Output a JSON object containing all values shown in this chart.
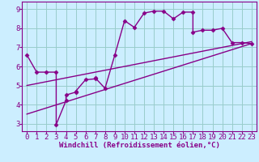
{
  "xlabel": "Windchill (Refroidissement éolien,°C)",
  "bg_color": "#cceeff",
  "line_color": "#880088",
  "grid_color": "#99cccc",
  "xlim": [
    -0.5,
    23.5
  ],
  "ylim": [
    2.6,
    9.4
  ],
  "xticks": [
    0,
    1,
    2,
    3,
    4,
    5,
    6,
    7,
    8,
    9,
    10,
    11,
    12,
    13,
    14,
    15,
    16,
    17,
    18,
    19,
    20,
    21,
    22,
    23
  ],
  "yticks": [
    3,
    4,
    5,
    6,
    7,
    8,
    9
  ],
  "series1_x": [
    0,
    1,
    2,
    3,
    3,
    4,
    4,
    5,
    5,
    6,
    7,
    7,
    8,
    9,
    10,
    11,
    12,
    13,
    14,
    15,
    16,
    17,
    17,
    18,
    19,
    20,
    21,
    22,
    23
  ],
  "series1_y": [
    6.6,
    5.7,
    5.7,
    5.7,
    2.95,
    4.2,
    4.5,
    4.65,
    4.7,
    5.3,
    5.35,
    5.4,
    4.85,
    6.6,
    8.4,
    8.05,
    8.8,
    8.9,
    8.9,
    8.5,
    8.85,
    8.85,
    7.8,
    7.9,
    7.9,
    8.0,
    7.25,
    7.25,
    7.2
  ],
  "series2_x": [
    0,
    23
  ],
  "series2_y": [
    3.5,
    7.2
  ],
  "series3_x": [
    0,
    23
  ],
  "series3_y": [
    5.0,
    7.3
  ],
  "marker": "D",
  "markersize": 2.5,
  "linewidth": 1.0,
  "fontsize_label": 6.5,
  "fontsize_tick": 6.5
}
